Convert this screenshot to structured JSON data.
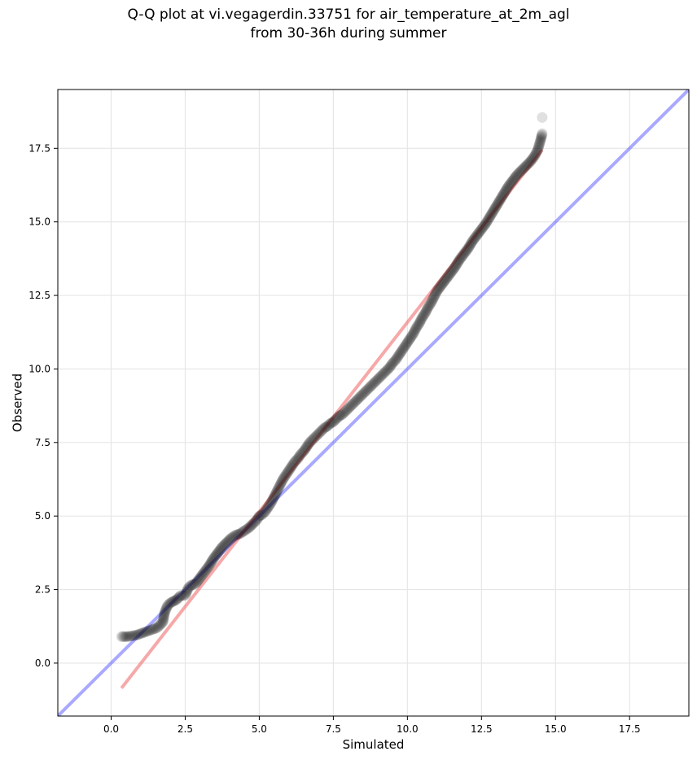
{
  "chart_data": {
    "type": "scatter",
    "title_lines": [
      "Q-Q plot at vi.vegagerdin.33751 for air_temperature_at_2m_agl",
      "from 30-36h during summer"
    ],
    "xlabel": "Simulated",
    "ylabel": "Observed",
    "xlim": [
      -1.8,
      19.5
    ],
    "ylim": [
      -1.8,
      19.5
    ],
    "x_ticks": [
      0.0,
      2.5,
      5.0,
      7.5,
      10.0,
      12.5,
      15.0,
      17.5
    ],
    "y_ticks": [
      0.0,
      2.5,
      5.0,
      7.5,
      10.0,
      12.5,
      15.0,
      17.5
    ],
    "x_tick_labels": [
      "0.0",
      "2.5",
      "5.0",
      "7.5",
      "10.0",
      "12.5",
      "15.0",
      "17.5"
    ],
    "y_tick_labels": [
      "0.0",
      "2.5",
      "5.0",
      "7.5",
      "10.0",
      "12.5",
      "15.0",
      "17.5"
    ],
    "grid": true,
    "point_color": "#000000",
    "point_opacity": 0.12,
    "quantiles": {
      "x": [
        0.35,
        0.55,
        0.85,
        1.55,
        1.75,
        1.8,
        1.9,
        2.0,
        2.1,
        2.2,
        2.35,
        2.5,
        2.6,
        2.7,
        2.85,
        3.0,
        3.15,
        3.3,
        3.45,
        3.6,
        3.75,
        3.9,
        4.05,
        4.2,
        4.35,
        4.5,
        4.65,
        4.8,
        4.9,
        5.0,
        5.1,
        5.2,
        5.3,
        5.4,
        5.5,
        5.6,
        5.7,
        5.8,
        5.9,
        6.0,
        6.1,
        6.2,
        6.3,
        6.4,
        6.5,
        6.6,
        6.7,
        6.8,
        6.9,
        7.0,
        7.1,
        7.2,
        7.3,
        7.4,
        7.5,
        7.6,
        7.7,
        7.8,
        7.9,
        8.0,
        8.1,
        8.2,
        8.3,
        8.4,
        8.5,
        8.6,
        8.7,
        8.8,
        8.9,
        9.0,
        9.1,
        9.2,
        9.3,
        9.4,
        9.5,
        9.6,
        9.7,
        9.8,
        9.9,
        10.0,
        10.1,
        10.2,
        10.3,
        10.4,
        10.5,
        10.6,
        10.7,
        10.8,
        10.9,
        11.0,
        11.15,
        11.3,
        11.45,
        11.6,
        11.75,
        11.9,
        12.05,
        12.2,
        12.35,
        12.5,
        12.65,
        12.8,
        12.95,
        13.1,
        13.25,
        13.4,
        13.55,
        13.7,
        13.85,
        14.0,
        14.15,
        14.3,
        14.4,
        14.5,
        14.55
      ],
      "y": [
        0.9,
        0.9,
        0.95,
        1.2,
        1.4,
        1.7,
        1.95,
        2.05,
        2.1,
        2.15,
        2.3,
        2.3,
        2.55,
        2.65,
        2.7,
        2.9,
        3.1,
        3.3,
        3.55,
        3.75,
        3.95,
        4.1,
        4.25,
        4.35,
        4.4,
        4.5,
        4.6,
        4.75,
        4.85,
        5.0,
        5.05,
        5.15,
        5.3,
        5.45,
        5.65,
        5.85,
        6.05,
        6.25,
        6.4,
        6.55,
        6.7,
        6.85,
        6.95,
        7.1,
        7.2,
        7.35,
        7.5,
        7.6,
        7.7,
        7.8,
        7.9,
        8.0,
        8.05,
        8.15,
        8.2,
        8.3,
        8.4,
        8.45,
        8.55,
        8.65,
        8.75,
        8.85,
        8.95,
        9.05,
        9.15,
        9.25,
        9.35,
        9.45,
        9.55,
        9.65,
        9.75,
        9.85,
        9.95,
        10.05,
        10.2,
        10.3,
        10.45,
        10.6,
        10.75,
        10.9,
        11.05,
        11.2,
        11.4,
        11.55,
        11.75,
        11.9,
        12.1,
        12.25,
        12.45,
        12.65,
        12.85,
        13.05,
        13.25,
        13.45,
        13.7,
        13.9,
        14.1,
        14.35,
        14.55,
        14.75,
        14.95,
        15.2,
        15.45,
        15.7,
        15.95,
        16.2,
        16.4,
        16.6,
        16.75,
        16.9,
        17.05,
        17.25,
        17.45,
        17.8,
        18.0
      ]
    },
    "outlier_points": [
      {
        "x": 14.55,
        "y": 18.55
      }
    ],
    "fit_line": {
      "x": [
        0.35,
        14.55
      ],
      "y": [
        -0.85,
        17.45
      ],
      "color": "#f06060",
      "opacity": 0.55
    },
    "identity_line": {
      "x": [
        -1.8,
        19.5
      ],
      "y": [
        -1.8,
        19.5
      ],
      "color": "#4040ff",
      "opacity": 0.45
    }
  }
}
